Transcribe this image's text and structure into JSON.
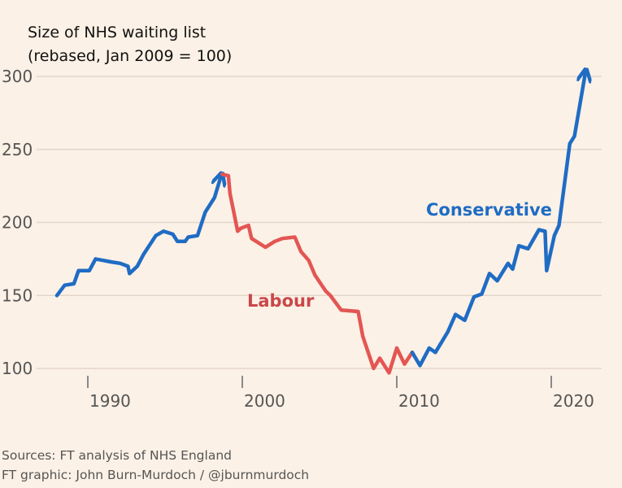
{
  "chart_data": {
    "type": "line",
    "title": "Size of NHS waiting list",
    "subtitle": "(rebased, Jan 2009 = 100)",
    "xlabel": "",
    "ylabel": "",
    "xlim": [
      1987.1,
      2023.8
    ],
    "ylim": [
      94,
      310
    ],
    "x_ticks": [
      "1990",
      "2000",
      "2010",
      "2020"
    ],
    "y_ticks": [
      "100",
      "150",
      "200",
      "250",
      "300"
    ],
    "grid": true,
    "colors": {
      "Conservative": "#1f6cc4",
      "Labour": "#e35653"
    },
    "annotations": [
      "Labour",
      "Conservative"
    ],
    "series": [
      {
        "party": "Conservative",
        "points": [
          [
            1988.0,
            150
          ],
          [
            1988.5,
            157
          ],
          [
            1989.1,
            158
          ],
          [
            1989.4,
            167
          ],
          [
            1990.1,
            167
          ],
          [
            1990.5,
            175
          ],
          [
            1991.5,
            173
          ],
          [
            1992.1,
            172
          ],
          [
            1992.6,
            170
          ],
          [
            1992.7,
            165
          ],
          [
            1993.2,
            170
          ],
          [
            1993.6,
            178
          ],
          [
            1994.4,
            191
          ],
          [
            1994.9,
            194
          ],
          [
            1995.5,
            192
          ],
          [
            1995.8,
            187
          ],
          [
            1996.3,
            187
          ],
          [
            1996.5,
            190
          ],
          [
            1997.1,
            191
          ],
          [
            1997.6,
            207
          ],
          [
            1998.2,
            217
          ],
          [
            1998.6,
            231
          ]
        ]
      },
      {
        "party": "Labour",
        "points": [
          [
            1998.7,
            233
          ],
          [
            1999.1,
            232
          ],
          [
            1999.2,
            220
          ],
          [
            1999.7,
            194
          ],
          [
            1999.9,
            196
          ],
          [
            2000.4,
            198
          ],
          [
            2000.6,
            189
          ],
          [
            2001.5,
            183
          ],
          [
            2002.1,
            187
          ],
          [
            2002.6,
            189
          ],
          [
            2003.4,
            190
          ],
          [
            2003.8,
            180
          ],
          [
            2004.3,
            174
          ],
          [
            2004.7,
            164
          ],
          [
            2005.4,
            153
          ],
          [
            2005.7,
            150
          ],
          [
            2006.4,
            140
          ],
          [
            2007.5,
            139
          ],
          [
            2007.8,
            122
          ],
          [
            2008.5,
            100
          ],
          [
            2008.9,
            107
          ],
          [
            2009.5,
            97
          ],
          [
            2010.0,
            114
          ],
          [
            2010.5,
            103
          ],
          [
            2011.0,
            111
          ]
        ]
      },
      {
        "party": "Conservative",
        "points": [
          [
            2011.0,
            111
          ],
          [
            2011.5,
            102
          ],
          [
            2012.1,
            114
          ],
          [
            2012.5,
            111
          ],
          [
            2013.3,
            125
          ],
          [
            2013.8,
            137
          ],
          [
            2014.4,
            133
          ],
          [
            2015.0,
            149
          ],
          [
            2015.5,
            151
          ],
          [
            2016.0,
            165
          ],
          [
            2016.5,
            160
          ],
          [
            2017.2,
            172
          ],
          [
            2017.5,
            168
          ],
          [
            2017.9,
            184
          ],
          [
            2018.5,
            182
          ],
          [
            2019.2,
            195
          ],
          [
            2019.6,
            194
          ],
          [
            2019.7,
            167
          ],
          [
            2020.2,
            191
          ],
          [
            2020.5,
            198
          ],
          [
            2021.2,
            254
          ],
          [
            2021.5,
            259
          ],
          [
            2022.2,
            302
          ]
        ]
      }
    ]
  },
  "sources": "Sources: FT analysis of NHS England",
  "credit": "FT graphic: John Burn-Murdoch / @jburnmurdoch"
}
